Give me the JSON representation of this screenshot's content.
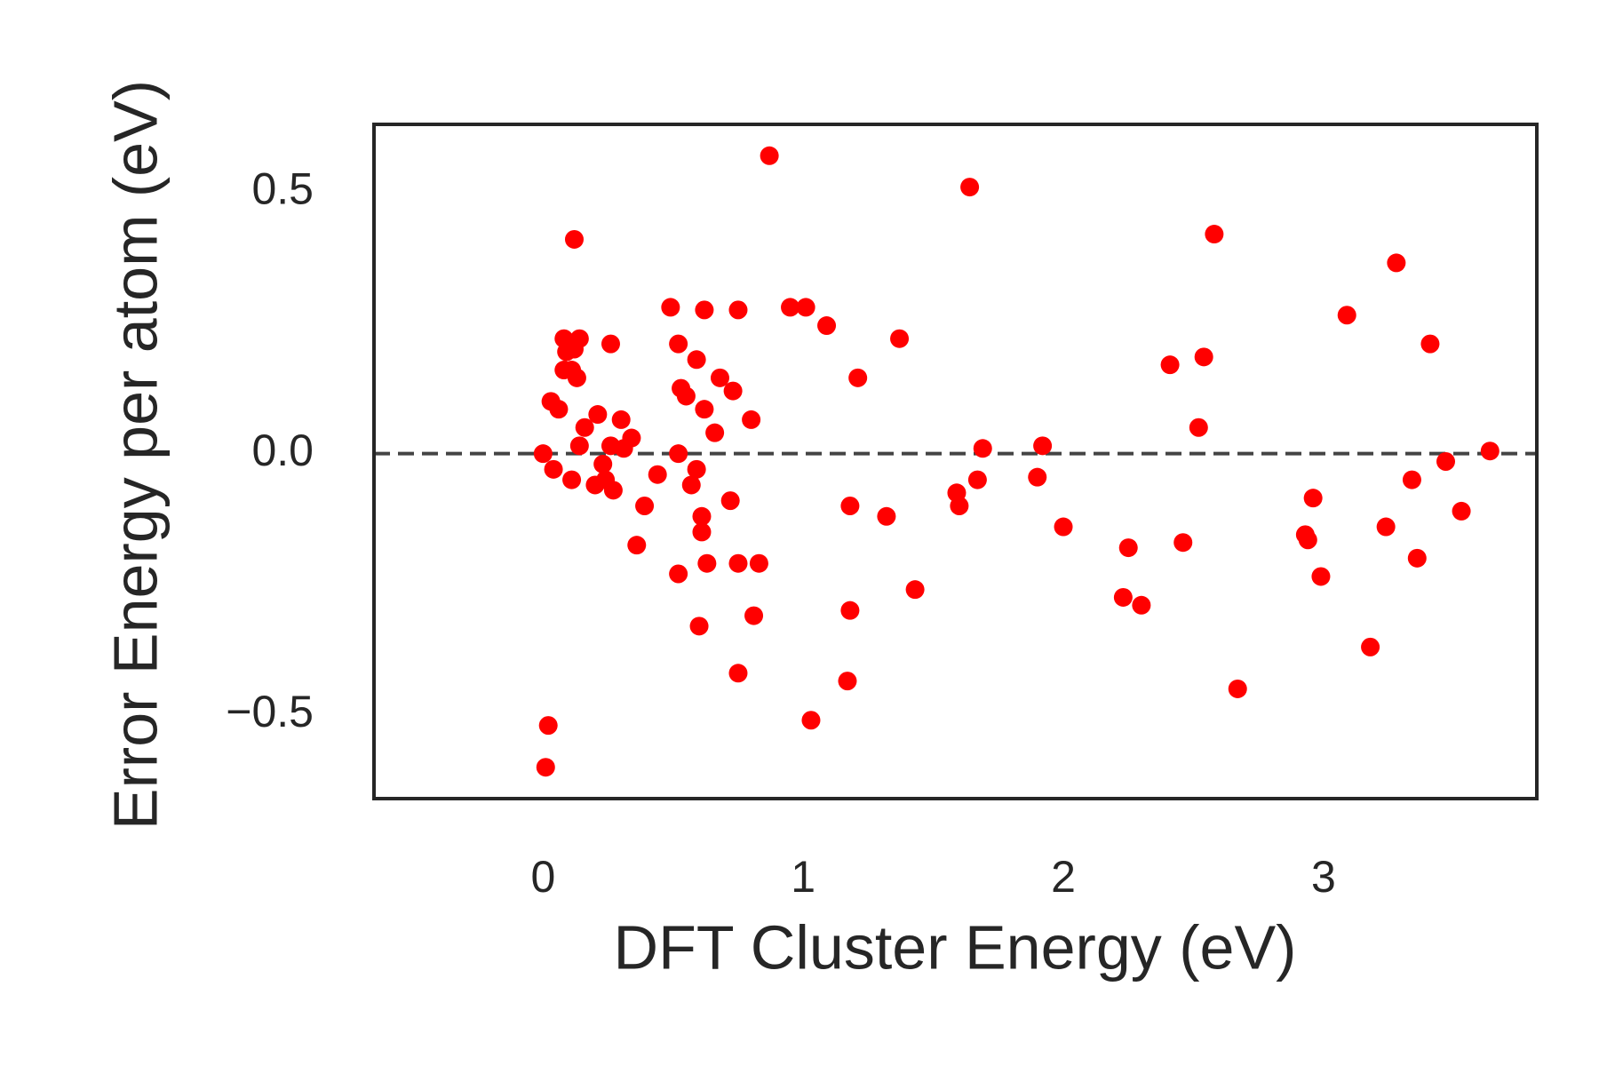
{
  "chart_data": {
    "type": "scatter",
    "xlabel": "DFT Cluster Energy (eV)",
    "ylabel": "Error Energy per atom (eV)",
    "color": "#ff0000",
    "x": [
      0.0,
      0.03,
      0.06,
      0.04,
      0.02,
      0.01,
      0.12,
      0.08,
      0.14,
      0.09,
      0.12,
      0.08,
      0.11,
      0.13,
      0.16,
      0.14,
      0.11,
      0.21,
      0.23,
      0.2,
      0.24,
      0.27,
      0.26,
      0.26,
      0.3,
      0.31,
      0.34,
      0.39,
      0.36,
      0.44,
      0.49,
      0.52,
      0.53,
      0.55,
      0.52,
      0.52,
      0.59,
      0.62,
      0.62,
      0.59,
      0.57,
      0.61,
      0.61,
      0.63,
      0.6,
      0.66,
      0.68,
      0.73,
      0.75,
      0.72,
      0.75,
      0.75,
      0.8,
      0.83,
      0.81,
      0.87,
      0.95,
      1.01,
      1.09,
      1.03,
      1.21,
      1.18,
      1.18,
      1.17,
      1.32,
      1.37,
      1.43,
      1.64,
      1.59,
      1.6,
      1.67,
      1.69,
      1.9,
      1.92,
      2.0,
      2.23,
      2.25,
      2.3,
      2.41,
      2.46,
      2.52,
      2.54,
      2.58,
      2.67,
      2.93,
      2.94,
      2.96,
      2.99,
      3.09,
      3.18,
      3.24,
      3.28,
      3.34,
      3.36,
      3.41,
      3.47,
      3.53,
      3.64
    ],
    "values": [
      0.0,
      0.1,
      0.085,
      -0.03,
      -0.52,
      -0.6,
      0.41,
      0.22,
      0.22,
      0.195,
      0.2,
      0.16,
      0.16,
      0.145,
      0.05,
      0.015,
      -0.05,
      0.075,
      -0.02,
      -0.06,
      -0.05,
      -0.07,
      0.21,
      0.015,
      0.065,
      0.01,
      0.03,
      -0.1,
      -0.175,
      -0.04,
      0.28,
      0.21,
      0.125,
      0.11,
      0.0,
      -0.23,
      0.18,
      0.275,
      0.085,
      -0.03,
      -0.06,
      -0.12,
      -0.15,
      -0.21,
      -0.33,
      0.04,
      0.145,
      0.12,
      0.275,
      -0.09,
      -0.21,
      -0.42,
      0.065,
      -0.21,
      -0.31,
      0.57,
      0.28,
      0.28,
      0.245,
      -0.51,
      0.145,
      -0.1,
      -0.3,
      -0.435,
      -0.12,
      0.22,
      -0.26,
      0.51,
      -0.075,
      -0.1,
      -0.05,
      0.01,
      -0.045,
      0.015,
      -0.14,
      -0.275,
      -0.18,
      -0.29,
      0.17,
      -0.17,
      0.05,
      0.185,
      0.42,
      -0.45,
      -0.155,
      -0.165,
      -0.085,
      -0.235,
      0.265,
      -0.37,
      -0.14,
      0.365,
      -0.05,
      -0.2,
      0.21,
      -0.015,
      -0.11,
      0.005
    ],
    "xlim": [
      -0.65,
      3.82
    ],
    "ylim": [
      -0.66,
      0.63
    ],
    "xticks": [
      0,
      1,
      2,
      3
    ],
    "yticks": [
      {
        "value": -0.5,
        "label": "−0.5"
      },
      {
        "value": 0,
        "label": "0.0"
      },
      0.5
    ],
    "reference_line": {
      "y": 0,
      "color": "#444444",
      "style": "dashed"
    },
    "grid": false
  }
}
